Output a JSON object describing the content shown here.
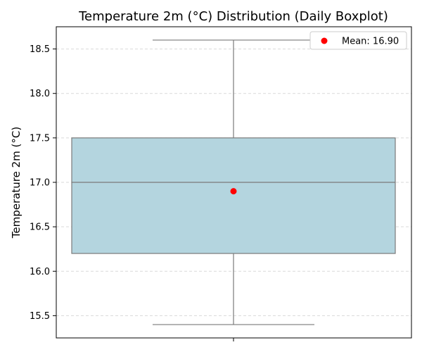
{
  "chart_data": {
    "type": "boxplot",
    "title": "Temperature 2m (°C) Distribution (Daily Boxplot)",
    "xlabel": "",
    "ylabel": "Temperature 2m (°C)",
    "ylim": [
      15.25,
      18.75
    ],
    "yticks": [
      15.5,
      16.0,
      16.5,
      17.0,
      17.5,
      18.0,
      18.5
    ],
    "ytick_labels": [
      "15.5",
      "16.0",
      "16.5",
      "17.0",
      "17.5",
      "18.0",
      "18.5"
    ],
    "grid": "horizontal dashed",
    "legend_placement": "top-right",
    "box": {
      "min": 15.4,
      "q1": 16.2,
      "median": 17.0,
      "q3": 17.5,
      "max": 18.6,
      "mean": 16.9
    },
    "legend": [
      {
        "label": "Mean: 16.90",
        "marker": "dot"
      }
    ],
    "colors": {
      "box_fill": "#b4d5df",
      "box_edge": "#7a7a7a",
      "mean": "#ff0000",
      "grid": "#d9d9d9",
      "axis": "#000000"
    }
  }
}
